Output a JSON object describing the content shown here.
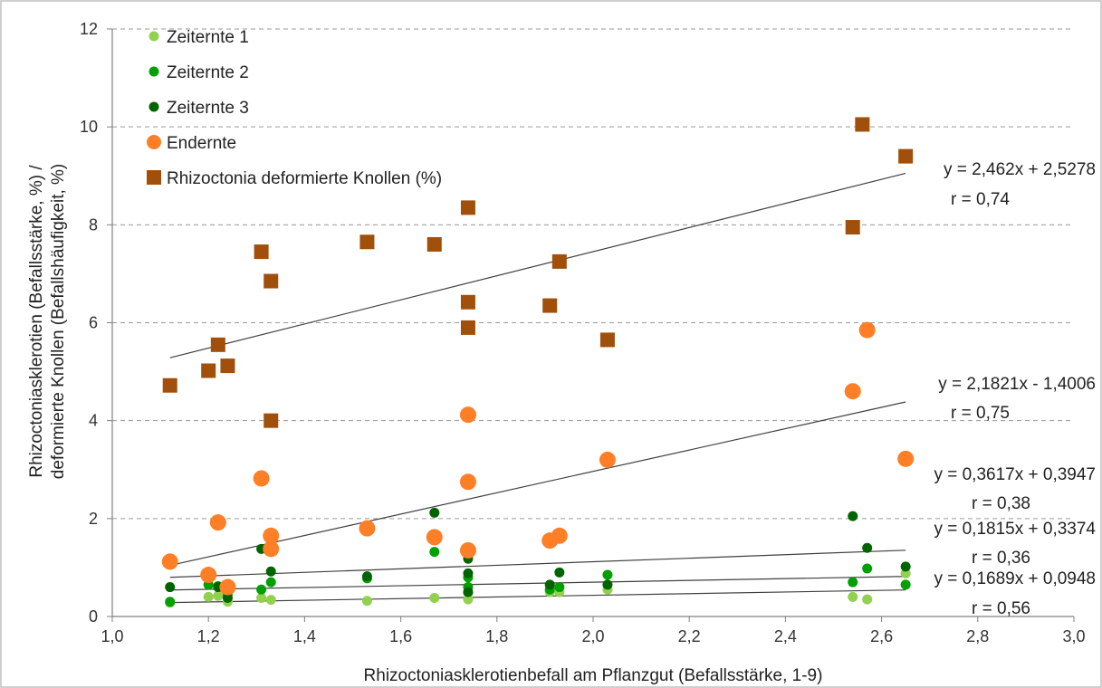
{
  "chart_data": {
    "type": "scatter",
    "title": "",
    "xlabel": "Rhizoctoniasklerotienbefall am Pflanzgut (Befallsstärke, 1-9)",
    "ylabel_line1": "Rhizoctoniasklerotien (Befallsstärke, %) /",
    "ylabel_line2": "deformierte Knollen (Befallshäufigkeit, %)",
    "xlim": [
      1.0,
      3.0
    ],
    "ylim": [
      0,
      12
    ],
    "x_ticks": [
      "1,0",
      "1,2",
      "1,4",
      "1,6",
      "1,8",
      "2,0",
      "2,2",
      "2,4",
      "2,6",
      "2,8",
      "3,0"
    ],
    "y_ticks": [
      "0",
      "2",
      "4",
      "6",
      "8",
      "10",
      "12"
    ],
    "grid": "horizontal dashed",
    "legend_position": "top-left",
    "series": [
      {
        "name": "Zeiternte 1",
        "marker": "circle",
        "size": "small",
        "color": "#92d050",
        "points": [
          [
            1.12,
            0.28
          ],
          [
            1.2,
            0.4
          ],
          [
            1.22,
            0.42
          ],
          [
            1.24,
            0.3
          ],
          [
            1.31,
            0.38
          ],
          [
            1.33,
            0.34
          ],
          [
            1.53,
            0.32
          ],
          [
            1.67,
            0.38
          ],
          [
            1.74,
            0.35
          ],
          [
            1.74,
            0.48
          ],
          [
            1.91,
            0.5
          ],
          [
            1.93,
            0.5
          ],
          [
            2.03,
            0.55
          ],
          [
            2.54,
            0.4
          ],
          [
            2.57,
            0.35
          ],
          [
            2.65,
            0.88
          ]
        ],
        "trend": {
          "slope": 0.1689,
          "intercept": 0.0948,
          "equation": "y = 0,1689x + 0,0948",
          "r": "r = 0,56"
        }
      },
      {
        "name": "Zeiternte 2",
        "marker": "circle",
        "size": "small",
        "color": "#00a000",
        "points": [
          [
            1.12,
            0.3
          ],
          [
            1.2,
            0.65
          ],
          [
            1.22,
            0.62
          ],
          [
            1.24,
            0.45
          ],
          [
            1.31,
            0.55
          ],
          [
            1.33,
            0.7
          ],
          [
            1.53,
            0.78
          ],
          [
            1.67,
            1.32
          ],
          [
            1.74,
            0.6
          ],
          [
            1.74,
            0.8
          ],
          [
            1.91,
            0.55
          ],
          [
            1.93,
            0.6
          ],
          [
            2.03,
            0.85
          ],
          [
            2.54,
            0.7
          ],
          [
            2.57,
            0.98
          ],
          [
            2.65,
            0.65
          ]
        ],
        "trend": {
          "slope": 0.1815,
          "intercept": 0.3374,
          "equation": "y = 0,1815x + 0,3374",
          "r": "r = 0,36"
        }
      },
      {
        "name": "Zeiternte 3",
        "marker": "circle",
        "size": "small",
        "color": "#006400",
        "points": [
          [
            1.12,
            0.6
          ],
          [
            1.22,
            0.6
          ],
          [
            1.24,
            0.38
          ],
          [
            1.31,
            1.38
          ],
          [
            1.33,
            0.92
          ],
          [
            1.53,
            0.82
          ],
          [
            1.67,
            2.12
          ],
          [
            1.74,
            0.88
          ],
          [
            1.74,
            1.18
          ],
          [
            1.74,
            0.5
          ],
          [
            1.91,
            0.65
          ],
          [
            1.93,
            0.9
          ],
          [
            2.03,
            0.65
          ],
          [
            2.54,
            2.05
          ],
          [
            2.57,
            1.4
          ],
          [
            2.65,
            1.02
          ]
        ],
        "trend": {
          "slope": 0.3617,
          "intercept": 0.3947,
          "equation": "y = 0,3617x + 0,3947",
          "r": "r = 0,38"
        }
      },
      {
        "name": "Endernte",
        "marker": "circle",
        "size": "large",
        "color": "#ff7f27",
        "points": [
          [
            1.12,
            1.12
          ],
          [
            1.2,
            0.85
          ],
          [
            1.22,
            1.92
          ],
          [
            1.24,
            0.6
          ],
          [
            1.31,
            2.82
          ],
          [
            1.33,
            1.65
          ],
          [
            1.33,
            1.38
          ],
          [
            1.53,
            1.8
          ],
          [
            1.67,
            1.62
          ],
          [
            1.74,
            4.12
          ],
          [
            1.74,
            2.75
          ],
          [
            1.74,
            1.35
          ],
          [
            1.91,
            1.55
          ],
          [
            1.93,
            1.65
          ],
          [
            2.03,
            3.2
          ],
          [
            2.54,
            4.6
          ],
          [
            2.57,
            5.85
          ],
          [
            2.65,
            3.22
          ]
        ],
        "trend": {
          "slope": 2.1821,
          "intercept": -1.4006,
          "equation": "y = 2,1821x - 1,4006",
          "r": "r = 0,75"
        }
      },
      {
        "name": "Rhizoctonia deformierte Knollen (%)",
        "marker": "square",
        "size": "large",
        "color": "#a0500a",
        "points": [
          [
            1.12,
            4.72
          ],
          [
            1.2,
            5.02
          ],
          [
            1.22,
            5.55
          ],
          [
            1.24,
            5.12
          ],
          [
            1.31,
            7.45
          ],
          [
            1.33,
            6.85
          ],
          [
            1.33,
            4.0
          ],
          [
            1.53,
            7.65
          ],
          [
            1.67,
            7.6
          ],
          [
            1.74,
            8.35
          ],
          [
            1.74,
            6.42
          ],
          [
            1.74,
            5.9
          ],
          [
            1.91,
            6.35
          ],
          [
            1.93,
            7.25
          ],
          [
            2.03,
            5.65
          ],
          [
            2.54,
            7.95
          ],
          [
            2.56,
            10.05
          ],
          [
            2.65,
            9.4
          ]
        ],
        "trend": {
          "slope": 2.462,
          "intercept": 2.5278,
          "equation": "y = 2,462x + 2,5278",
          "r": "r = 0,74"
        }
      }
    ]
  }
}
